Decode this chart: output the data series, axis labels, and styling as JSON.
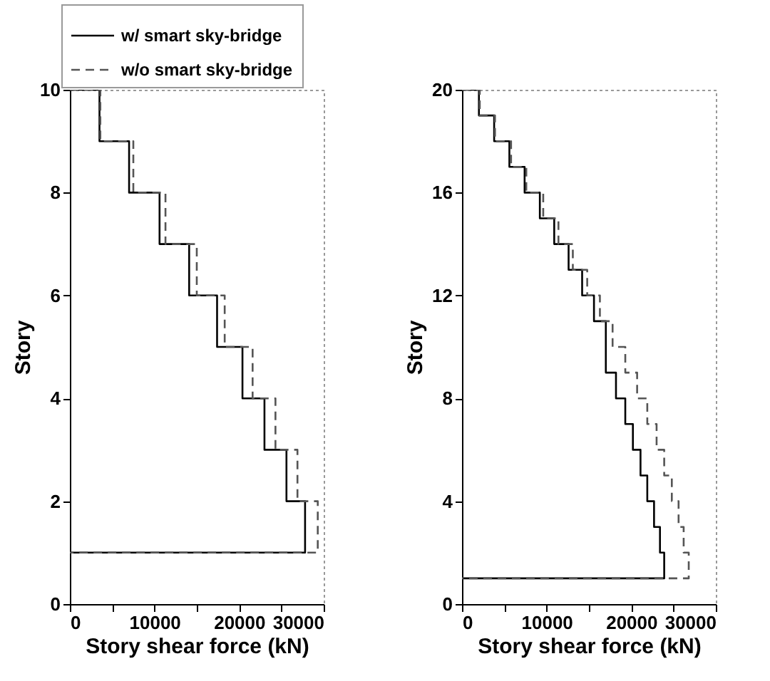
{
  "chart_data": [
    {
      "type": "step",
      "xlabel": "Story shear force (kN)",
      "ylabel": "Story",
      "legend": "top left",
      "marker": "none",
      "xlim": [
        0,
        30000
      ],
      "xticks": [
        0,
        {
          "value": 5000,
          "label": null
        },
        10000,
        {
          "value": 15000,
          "label": null
        },
        20000,
        {
          "value": 25000,
          "label": null
        },
        30000
      ],
      "ylim": [
        0,
        10
      ],
      "yticks": [
        0,
        2,
        4,
        6,
        8,
        10
      ],
      "series": [
        {
          "name": "w/ smart sky-bridge",
          "color": "#000000",
          "line_style": "solid",
          "x": [
            0,
            3500,
            7000,
            10600,
            14100,
            17400,
            20400,
            23000,
            25600,
            27800,
            27800,
            0
          ],
          "values": [
            10,
            10,
            9,
            8,
            7,
            6,
            5,
            4,
            3,
            2,
            1,
            1
          ]
        },
        {
          "name": "w/o smart sky-bridge",
          "color": "#555555",
          "line_style": "dashed",
          "x": [
            0,
            3600,
            7500,
            11300,
            15000,
            18300,
            21600,
            24300,
            26900,
            29300,
            29300,
            0
          ],
          "values": [
            10,
            10,
            9,
            8,
            7,
            6,
            5,
            4,
            3,
            2,
            1,
            1
          ]
        }
      ]
    },
    {
      "type": "step",
      "xlabel": "Story shear force (kN)",
      "ylabel": "Story",
      "legend": false,
      "marker": "none",
      "xlim": [
        0,
        30000
      ],
      "xticks": [
        0,
        {
          "value": 5000,
          "label": null
        },
        10000,
        {
          "value": 15000,
          "label": null
        },
        20000,
        {
          "value": 25000,
          "label": null
        },
        30000
      ],
      "ylim": [
        0,
        20
      ],
      "yticks": [
        0,
        4,
        8,
        12,
        16,
        20
      ],
      "series": [
        {
          "color": "#000000",
          "line_style": "solid",
          "x": [
            0,
            2000,
            3800,
            5600,
            7400,
            9200,
            10900,
            12600,
            14200,
            15600,
            17000,
            17000,
            18200,
            19300,
            20200,
            21100,
            21900,
            22700,
            23400,
            23900,
            23900,
            0
          ],
          "values": [
            20,
            20,
            19,
            18,
            17,
            16,
            15,
            14,
            13,
            12,
            11,
            10,
            9,
            8,
            7,
            6,
            5,
            4,
            3,
            2,
            1,
            1
          ]
        },
        {
          "color": "#555555",
          "line_style": "dashed",
          "x": [
            0,
            2100,
            3900,
            5800,
            7600,
            9600,
            11400,
            13100,
            14800,
            16300,
            17800,
            19300,
            20700,
            21900,
            23000,
            23900,
            24800,
            25600,
            26200,
            26800,
            26800,
            0
          ],
          "values": [
            20,
            20,
            19,
            18,
            17,
            16,
            15,
            14,
            13,
            12,
            11,
            10,
            9,
            8,
            7,
            6,
            5,
            4,
            3,
            2,
            1,
            1
          ]
        }
      ]
    }
  ]
}
